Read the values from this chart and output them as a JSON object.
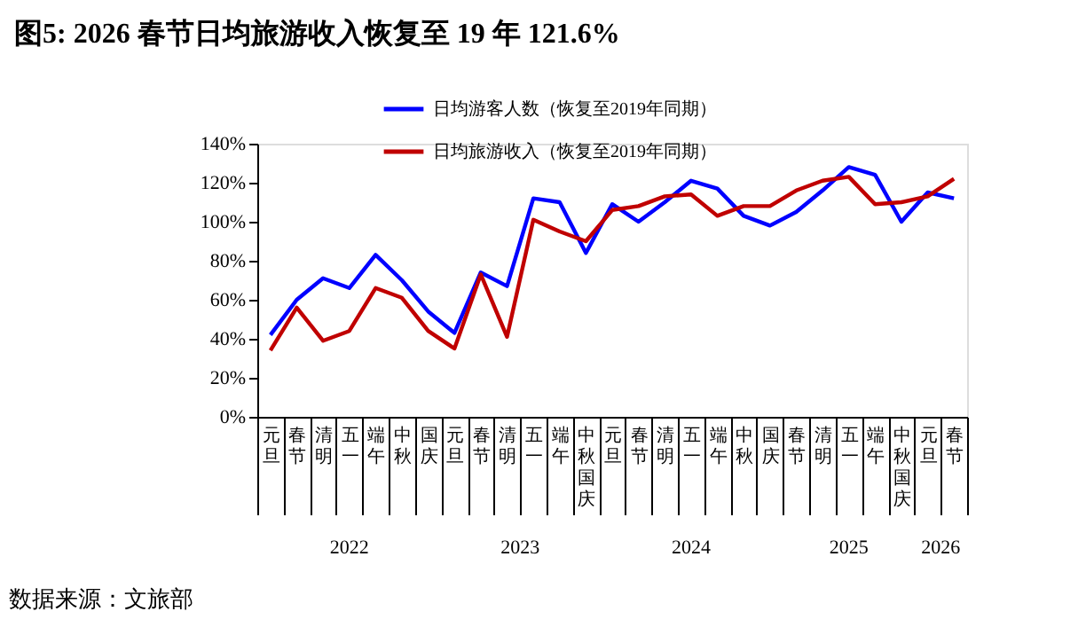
{
  "chart_data": {
    "type": "line",
    "title": "图5: 2026 春节日均旅游收入恢复至 19 年 121.6%",
    "categories": [
      "元旦",
      "春节",
      "清明",
      "五一",
      "端午",
      "中秋",
      "国庆",
      "元旦",
      "春节",
      "清明",
      "五一",
      "端午",
      "中秋国庆",
      "元旦",
      "春节",
      "清明",
      "五一",
      "端午",
      "中秋",
      "国庆",
      "春节",
      "清明",
      "五一",
      "端午",
      "中秋国庆",
      "元旦",
      "春节"
    ],
    "series": [
      {
        "name": "日均游客人数（恢复至2019年同期）",
        "color": "#0000ff",
        "values": [
          42,
          60,
          71,
          66,
          83,
          70,
          54,
          43,
          74,
          67,
          112,
          110,
          84,
          109,
          100,
          110,
          121,
          117,
          103,
          98,
          105,
          116,
          128,
          124,
          100,
          115,
          112
        ]
      },
      {
        "name": "日均旅游收入（恢复至2019年同期）",
        "color": "#c00000",
        "values": [
          34,
          56,
          39,
          44,
          66,
          61,
          44,
          35,
          73,
          41,
          101,
          95,
          90,
          106,
          108,
          113,
          114,
          103,
          108,
          108,
          116,
          121,
          123,
          109,
          110,
          113,
          122
        ]
      }
    ],
    "ylim": [
      0,
      140
    ],
    "yticks": [
      {
        "value": 0,
        "label": "0%"
      },
      {
        "value": 20,
        "label": "20%"
      },
      {
        "value": 40,
        "label": "40%"
      },
      {
        "value": 60,
        "label": "60%"
      },
      {
        "value": 80,
        "label": "80%"
      },
      {
        "value": 100,
        "label": "100%"
      },
      {
        "value": 120,
        "label": "120%"
      },
      {
        "value": 140,
        "label": "140%"
      }
    ],
    "grid": false,
    "legend": "top",
    "marker": "none",
    "line_style": "solid",
    "annotations": [
      "2022",
      "2023",
      "2024",
      "2025",
      "2026",
      "数据来源：文旅部"
    ]
  }
}
